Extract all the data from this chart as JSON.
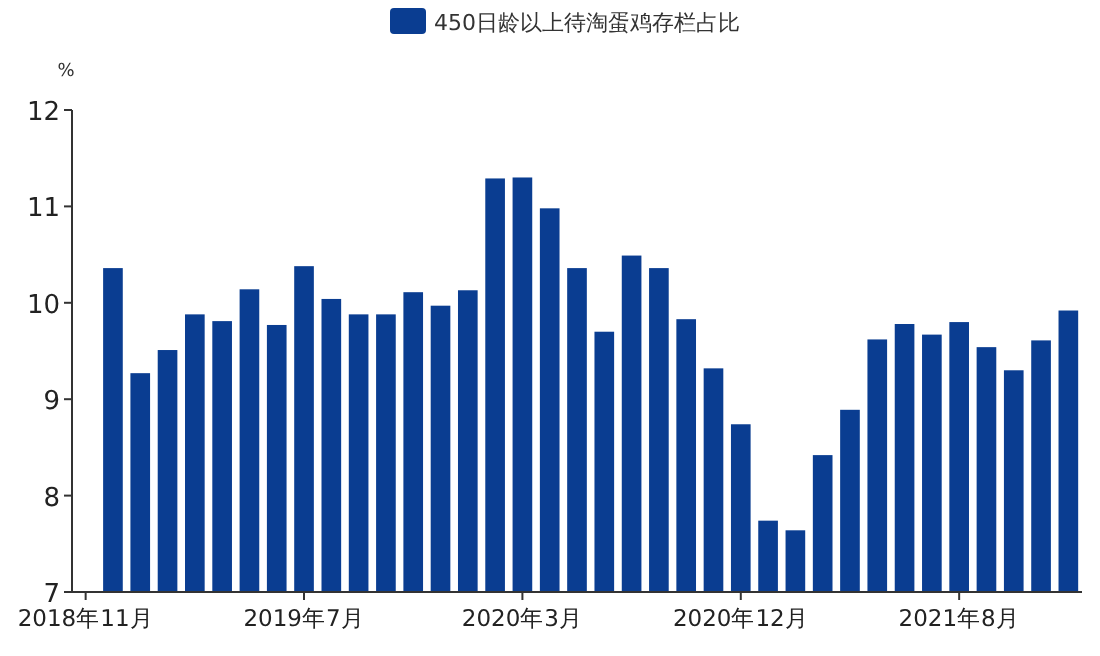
{
  "chart_data": {
    "type": "bar",
    "ylabel": "%",
    "legend": "top",
    "ylim": [
      7,
      12
    ],
    "yticks": [
      7,
      8,
      9,
      10,
      11,
      12
    ],
    "categories": [
      "2018年11月",
      null,
      null,
      null,
      null,
      null,
      null,
      null,
      "2019年7月",
      null,
      null,
      null,
      null,
      null,
      null,
      null,
      "2020年3月",
      null,
      null,
      null,
      null,
      null,
      null,
      null,
      "2020年12月",
      null,
      null,
      null,
      null,
      null,
      null,
      null,
      "2021年8月",
      null,
      null,
      null,
      null
    ],
    "series": [
      {
        "name": "450日龄以上待淘蛋鸡存栏占比",
        "color": "#0a3d91",
        "values": [
          null,
          10.36,
          9.27,
          9.51,
          9.88,
          9.81,
          10.14,
          9.77,
          10.38,
          10.04,
          9.88,
          9.88,
          10.11,
          9.97,
          10.13,
          11.29,
          11.3,
          10.98,
          10.36,
          9.7,
          10.49,
          10.36,
          9.83,
          9.32,
          8.74,
          7.74,
          7.64,
          8.42,
          8.89,
          9.62,
          9.78,
          9.67,
          9.8,
          9.54,
          9.3,
          9.61,
          9.92
        ]
      }
    ]
  }
}
